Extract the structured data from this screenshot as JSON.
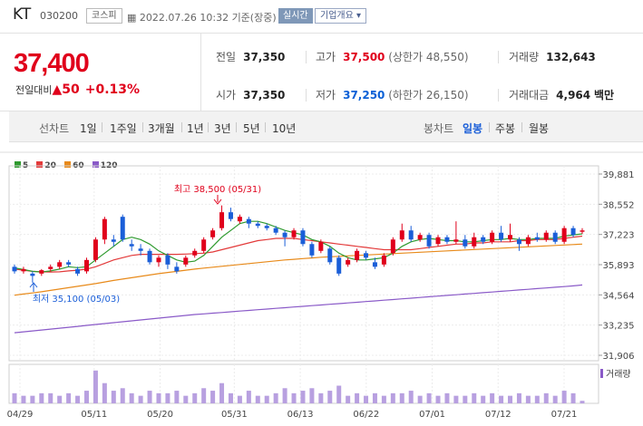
{
  "header": {
    "name": "KT",
    "code": "030200",
    "market": "코스피",
    "timestamp": "2022.07.26 10:32 기준(장중)",
    "realtime_label": "실시간",
    "corp_label": "기업개요"
  },
  "quote": {
    "price": "37,400",
    "change_label": "전일대비",
    "change": "50",
    "change_pct": "+0.13%",
    "prev_close_label": "전일",
    "prev_close": "37,350",
    "high_label": "고가",
    "high": "37,500",
    "upper_limit_label": "(상한가 48,550)",
    "volume_label": "거래량",
    "volume": "132,643",
    "open_label": "시가",
    "open": "37,350",
    "low_label": "저가",
    "low": "37,250",
    "lower_limit_label": "(하한가 26,150)",
    "value_label": "거래대금",
    "value": "4,964",
    "value_unit": "백만"
  },
  "periods": {
    "chart_label": "선차트",
    "items": [
      "1일",
      "1주일",
      "3개월",
      "1년",
      "3년",
      "5년",
      "10년"
    ],
    "candle_label": "봉차트",
    "candle_items": [
      "일봉",
      "주봉",
      "월봉"
    ],
    "candle_active": "일봉"
  },
  "legend": [
    {
      "name": "5",
      "color": "#2e9a2e"
    },
    {
      "name": "20",
      "color": "#e33a3a"
    },
    {
      "name": "60",
      "color": "#e88a1a"
    },
    {
      "name": "120",
      "color": "#8a5ac8"
    }
  ],
  "volume_label": "거래량",
  "annotations": {
    "high": "최고 38,500 (05/31)",
    "low": "최저 35,100 (05/03)"
  },
  "chart_data": {
    "type": "candlestick",
    "y_ticks": [
      "39,881",
      "38,552",
      "37,223",
      "35,893",
      "34,564",
      "33,235",
      "31,906"
    ],
    "ylim": [
      31906,
      39881
    ],
    "x_ticks": [
      "04/29",
      "05/11",
      "05/20",
      "05/31",
      "06/13",
      "06/22",
      "07/01",
      "07/12",
      "07/21"
    ],
    "colors": {
      "up": "#e0001b",
      "down": "#1a5ed8",
      "volume": "#b8a0e0"
    },
    "candles": [
      {
        "o": 35800,
        "c": 35600,
        "h": 35900,
        "l": 35500,
        "v": 4
      },
      {
        "o": 35600,
        "c": 35700,
        "h": 35800,
        "l": 35500,
        "v": 3
      },
      {
        "o": 35500,
        "c": 35400,
        "h": 35600,
        "l": 35100,
        "v": 3
      },
      {
        "o": 35500,
        "c": 35650,
        "h": 35700,
        "l": 35400,
        "v": 4
      },
      {
        "o": 35700,
        "c": 35800,
        "h": 35900,
        "l": 35600,
        "v": 4
      },
      {
        "o": 35800,
        "c": 36000,
        "h": 36100,
        "l": 35700,
        "v": 3
      },
      {
        "o": 36000,
        "c": 35900,
        "h": 36100,
        "l": 35800,
        "v": 4
      },
      {
        "o": 35700,
        "c": 35500,
        "h": 35800,
        "l": 35400,
        "v": 3
      },
      {
        "o": 35600,
        "c": 36100,
        "h": 36200,
        "l": 35500,
        "v": 5
      },
      {
        "o": 36100,
        "c": 37000,
        "h": 37100,
        "l": 36000,
        "v": 13
      },
      {
        "o": 37000,
        "c": 37900,
        "h": 38000,
        "l": 36800,
        "v": 8
      },
      {
        "o": 37000,
        "c": 36900,
        "h": 37200,
        "l": 36700,
        "v": 5
      },
      {
        "o": 38000,
        "c": 37000,
        "h": 38100,
        "l": 36900,
        "v": 6
      },
      {
        "o": 36800,
        "c": 36700,
        "h": 37000,
        "l": 36500,
        "v": 4
      },
      {
        "o": 36600,
        "c": 36500,
        "h": 36800,
        "l": 36300,
        "v": 3
      },
      {
        "o": 36500,
        "c": 36000,
        "h": 36600,
        "l": 35900,
        "v": 5
      },
      {
        "o": 36000,
        "c": 36200,
        "h": 36300,
        "l": 35800,
        "v": 4
      },
      {
        "o": 36300,
        "c": 35900,
        "h": 36400,
        "l": 35700,
        "v": 4
      },
      {
        "o": 35800,
        "c": 35600,
        "h": 36000,
        "l": 35500,
        "v": 5
      },
      {
        "o": 35900,
        "c": 36200,
        "h": 36300,
        "l": 35800,
        "v": 3
      },
      {
        "o": 36300,
        "c": 36500,
        "h": 36600,
        "l": 36200,
        "v": 4
      },
      {
        "o": 36500,
        "c": 37000,
        "h": 37100,
        "l": 36400,
        "v": 6
      },
      {
        "o": 37100,
        "c": 37400,
        "h": 37500,
        "l": 37000,
        "v": 5
      },
      {
        "o": 37500,
        "c": 38200,
        "h": 38500,
        "l": 37400,
        "v": 8
      },
      {
        "o": 38200,
        "c": 37900,
        "h": 38400,
        "l": 37800,
        "v": 4
      },
      {
        "o": 37800,
        "c": 38000,
        "h": 38100,
        "l": 37700,
        "v": 3
      },
      {
        "o": 37900,
        "c": 37700,
        "h": 38000,
        "l": 37500,
        "v": 5
      },
      {
        "o": 37700,
        "c": 37600,
        "h": 37800,
        "l": 37500,
        "v": 3
      },
      {
        "o": 37600,
        "c": 37500,
        "h": 37700,
        "l": 37400,
        "v": 3
      },
      {
        "o": 37500,
        "c": 37300,
        "h": 37600,
        "l": 37200,
        "v": 4
      },
      {
        "o": 37300,
        "c": 37100,
        "h": 37400,
        "l": 36700,
        "v": 6
      },
      {
        "o": 37100,
        "c": 37400,
        "h": 37500,
        "l": 37000,
        "v": 4
      },
      {
        "o": 37400,
        "c": 36800,
        "h": 37500,
        "l": 36700,
        "v": 5
      },
      {
        "o": 36800,
        "c": 36300,
        "h": 36900,
        "l": 36200,
        "v": 6
      },
      {
        "o": 36500,
        "c": 36900,
        "h": 37000,
        "l": 36400,
        "v": 4
      },
      {
        "o": 36600,
        "c": 36000,
        "h": 36700,
        "l": 35900,
        "v": 5
      },
      {
        "o": 36200,
        "c": 35500,
        "h": 36300,
        "l": 35400,
        "v": 7
      },
      {
        "o": 35900,
        "c": 36100,
        "h": 36200,
        "l": 35800,
        "v": 3
      },
      {
        "o": 36100,
        "c": 36500,
        "h": 36600,
        "l": 36000,
        "v": 4
      },
      {
        "o": 36400,
        "c": 36200,
        "h": 36500,
        "l": 36100,
        "v": 3
      },
      {
        "o": 36000,
        "c": 35800,
        "h": 36200,
        "l": 35700,
        "v": 4
      },
      {
        "o": 35900,
        "c": 36300,
        "h": 36400,
        "l": 35800,
        "v": 3
      },
      {
        "o": 36400,
        "c": 37000,
        "h": 37100,
        "l": 36300,
        "v": 4
      },
      {
        "o": 37000,
        "c": 37400,
        "h": 37700,
        "l": 36900,
        "v": 4
      },
      {
        "o": 37400,
        "c": 37000,
        "h": 37600,
        "l": 36900,
        "v": 5
      },
      {
        "o": 37000,
        "c": 37200,
        "h": 37300,
        "l": 36900,
        "v": 3
      },
      {
        "o": 37200,
        "c": 36700,
        "h": 37300,
        "l": 36600,
        "v": 4
      },
      {
        "o": 36800,
        "c": 37100,
        "h": 37200,
        "l": 36700,
        "v": 3
      },
      {
        "o": 37100,
        "c": 36900,
        "h": 37200,
        "l": 36800,
        "v": 4
      },
      {
        "o": 36900,
        "c": 37000,
        "h": 37800,
        "l": 36800,
        "v": 3
      },
      {
        "o": 37000,
        "c": 36700,
        "h": 37200,
        "l": 36600,
        "v": 3
      },
      {
        "o": 36700,
        "c": 37100,
        "h": 37300,
        "l": 36600,
        "v": 4
      },
      {
        "o": 37100,
        "c": 36900,
        "h": 37200,
        "l": 36800,
        "v": 3
      },
      {
        "o": 36900,
        "c": 37300,
        "h": 37400,
        "l": 36800,
        "v": 4
      },
      {
        "o": 37300,
        "c": 37000,
        "h": 37600,
        "l": 36900,
        "v": 3
      },
      {
        "o": 37000,
        "c": 37200,
        "h": 37700,
        "l": 36900,
        "v": 3
      },
      {
        "o": 37000,
        "c": 36800,
        "h": 37100,
        "l": 36500,
        "v": 4
      },
      {
        "o": 36800,
        "c": 37100,
        "h": 37200,
        "l": 36700,
        "v": 3
      },
      {
        "o": 37100,
        "c": 37000,
        "h": 37300,
        "l": 36900,
        "v": 3
      },
      {
        "o": 37000,
        "c": 37300,
        "h": 37400,
        "l": 36900,
        "v": 4
      },
      {
        "o": 37300,
        "c": 36900,
        "h": 37400,
        "l": 36800,
        "v": 3
      },
      {
        "o": 36900,
        "c": 37500,
        "h": 37600,
        "l": 36800,
        "v": 5
      },
      {
        "o": 37500,
        "c": 37200,
        "h": 37600,
        "l": 37100,
        "v": 4
      },
      {
        "o": 37350,
        "c": 37400,
        "h": 37500,
        "l": 37250,
        "v": 1
      }
    ],
    "ma": {
      "5": [
        35750,
        35680,
        35600,
        35570,
        35620,
        35700,
        35800,
        35760,
        35800,
        36100,
        36400,
        36700,
        37000,
        37100,
        37000,
        36800,
        36500,
        36300,
        36100,
        36000,
        36050,
        36300,
        36700,
        37100,
        37400,
        37700,
        37800,
        37800,
        37700,
        37550,
        37400,
        37300,
        37200,
        37000,
        36900,
        36700,
        36400,
        36200,
        36100,
        36100,
        36150,
        36200,
        36400,
        36700,
        36900,
        37000,
        37050,
        37000,
        36950,
        36950,
        36900,
        36900,
        36950,
        37000,
        37000,
        37050,
        37000,
        37000,
        37050,
        37050,
        37050,
        37150,
        37200,
        37250
      ],
      "20": [
        35700,
        35650,
        35600,
        35580,
        35570,
        35580,
        35620,
        35650,
        35700,
        35800,
        35950,
        36100,
        36200,
        36300,
        36350,
        36350,
        36350,
        36350,
        36350,
        36360,
        36380,
        36400,
        36450,
        36550,
        36650,
        36750,
        36850,
        36950,
        37000,
        37050,
        37050,
        37050,
        37000,
        36950,
        36900,
        36850,
        36800,
        36750,
        36700,
        36650,
        36600,
        36550,
        36550,
        36550,
        36550,
        36600,
        36650,
        36700,
        36750,
        36800,
        36800,
        36850,
        36850,
        36900,
        36900,
        36900,
        36950,
        36950,
        37000,
        37000,
        37000,
        37050,
        37100,
        37150
      ],
      "60": [
        34550,
        34600,
        34650,
        34700,
        34760,
        34820,
        34880,
        34940,
        35000,
        35060,
        35130,
        35200,
        35260,
        35320,
        35380,
        35440,
        35500,
        35550,
        35600,
        35650,
        35700,
        35740,
        35780,
        35820,
        35860,
        35900,
        35940,
        35980,
        36020,
        36060,
        36100,
        36130,
        36160,
        36190,
        36220,
        36240,
        36260,
        36280,
        36300,
        36320,
        36340,
        36360,
        36380,
        36400,
        36420,
        36440,
        36460,
        36480,
        36500,
        36520,
        36540,
        36560,
        36580,
        36600,
        36620,
        36640,
        36660,
        36680,
        36700,
        36720,
        36740,
        36760,
        36780,
        36800
      ],
      "120": [
        32900,
        32940,
        32980,
        33020,
        33060,
        33100,
        33140,
        33180,
        33220,
        33260,
        33300,
        33340,
        33380,
        33420,
        33460,
        33500,
        33540,
        33580,
        33620,
        33660,
        33700,
        33730,
        33760,
        33790,
        33820,
        33850,
        33880,
        33910,
        33940,
        33970,
        34000,
        34030,
        34060,
        34090,
        34120,
        34150,
        34180,
        34210,
        34240,
        34270,
        34300,
        34330,
        34360,
        34390,
        34420,
        34450,
        34480,
        34510,
        34540,
        34570,
        34600,
        34630,
        34660,
        34690,
        34720,
        34750,
        34780,
        34810,
        34840,
        34870,
        34900,
        34930,
        34960,
        35000
      ]
    }
  }
}
